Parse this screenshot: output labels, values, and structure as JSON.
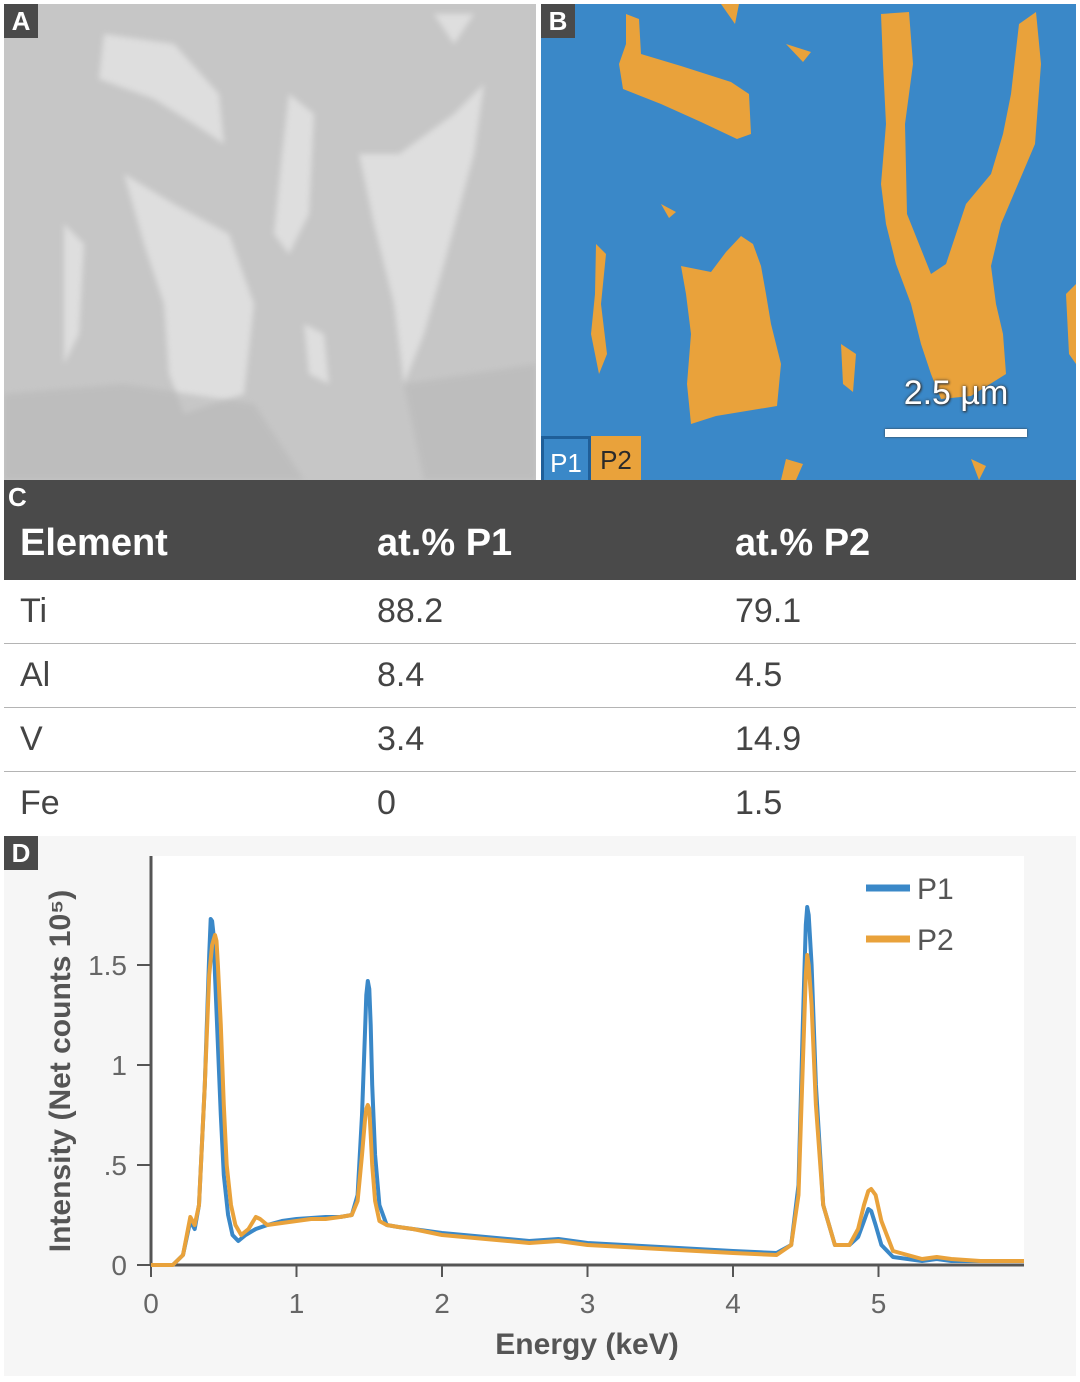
{
  "panels": {
    "a": {
      "label": "A"
    },
    "b": {
      "label": "B",
      "legend": [
        "P1",
        "P2"
      ],
      "scale_bar": "2.5 µm",
      "colors": {
        "p1": "#3a88c8",
        "p2": "#e9a23b"
      }
    },
    "c": {
      "label": "C"
    },
    "d": {
      "label": "D"
    }
  },
  "table": {
    "headers": [
      "Element",
      "at.% P1",
      "at.% P2"
    ],
    "rows": [
      [
        "Ti",
        "88.2",
        "79.1"
      ],
      [
        "Al",
        "8.4",
        "4.5"
      ],
      [
        "V",
        "3.4",
        "14.9"
      ],
      [
        "Fe",
        "0",
        "1.5"
      ]
    ]
  },
  "chart_data": {
    "type": "line",
    "xlabel": "Energy (keV)",
    "ylabel": "Intensity (Net counts 10⁵)",
    "xlim": [
      0,
      6
    ],
    "ylim": [
      0,
      2
    ],
    "xticks": [
      0,
      1,
      2,
      3,
      4,
      5
    ],
    "yticks": [
      0,
      0.5,
      1,
      1.5
    ],
    "ytick_labels": [
      "0",
      ".5",
      "1",
      "1.5"
    ],
    "legend_position": "top-right",
    "series": [
      {
        "name": "P1",
        "color": "#3a88c8",
        "x": [
          0.0,
          0.15,
          0.22,
          0.27,
          0.3,
          0.33,
          0.37,
          0.4,
          0.41,
          0.42,
          0.43,
          0.44,
          0.46,
          0.48,
          0.5,
          0.53,
          0.56,
          0.6,
          0.65,
          0.72,
          0.8,
          0.9,
          1.0,
          1.1,
          1.2,
          1.3,
          1.38,
          1.42,
          1.45,
          1.47,
          1.48,
          1.49,
          1.5,
          1.51,
          1.52,
          1.54,
          1.57,
          1.62,
          1.7,
          1.8,
          2.0,
          2.3,
          2.6,
          2.8,
          3.0,
          3.5,
          4.0,
          4.3,
          4.4,
          4.45,
          4.48,
          4.5,
          4.51,
          4.52,
          4.54,
          4.57,
          4.62,
          4.7,
          4.8,
          4.86,
          4.9,
          4.93,
          4.95,
          4.98,
          5.02,
          5.1,
          5.3,
          5.4,
          5.5,
          5.7,
          6.0
        ],
        "y": [
          0.0,
          0.0,
          0.05,
          0.22,
          0.18,
          0.3,
          0.9,
          1.55,
          1.73,
          1.72,
          1.65,
          1.45,
          1.1,
          0.75,
          0.45,
          0.25,
          0.15,
          0.12,
          0.15,
          0.18,
          0.2,
          0.22,
          0.23,
          0.235,
          0.24,
          0.24,
          0.25,
          0.35,
          0.75,
          1.15,
          1.35,
          1.42,
          1.38,
          1.2,
          0.9,
          0.55,
          0.3,
          0.2,
          0.19,
          0.18,
          0.16,
          0.14,
          0.12,
          0.13,
          0.11,
          0.09,
          0.07,
          0.06,
          0.1,
          0.4,
          1.2,
          1.7,
          1.79,
          1.75,
          1.5,
          0.9,
          0.3,
          0.1,
          0.1,
          0.14,
          0.22,
          0.28,
          0.27,
          0.2,
          0.1,
          0.04,
          0.02,
          0.03,
          0.02,
          0.02,
          0.02
        ]
      },
      {
        "name": "P2",
        "color": "#e9a23b",
        "x": [
          0.0,
          0.15,
          0.22,
          0.27,
          0.3,
          0.33,
          0.37,
          0.4,
          0.42,
          0.44,
          0.45,
          0.46,
          0.48,
          0.5,
          0.52,
          0.55,
          0.58,
          0.62,
          0.67,
          0.72,
          0.75,
          0.8,
          0.9,
          1.0,
          1.1,
          1.2,
          1.3,
          1.38,
          1.42,
          1.45,
          1.47,
          1.48,
          1.49,
          1.5,
          1.51,
          1.52,
          1.54,
          1.57,
          1.62,
          1.7,
          1.8,
          2.0,
          2.3,
          2.6,
          2.8,
          3.0,
          3.5,
          4.0,
          4.3,
          4.4,
          4.45,
          4.48,
          4.5,
          4.51,
          4.52,
          4.54,
          4.57,
          4.62,
          4.7,
          4.8,
          4.86,
          4.9,
          4.93,
          4.95,
          4.98,
          5.02,
          5.1,
          5.3,
          5.4,
          5.5,
          5.7,
          6.0
        ],
        "y": [
          0.0,
          0.0,
          0.05,
          0.24,
          0.2,
          0.3,
          0.9,
          1.45,
          1.6,
          1.65,
          1.62,
          1.5,
          1.2,
          0.8,
          0.5,
          0.3,
          0.2,
          0.15,
          0.18,
          0.24,
          0.23,
          0.2,
          0.21,
          0.22,
          0.23,
          0.23,
          0.24,
          0.25,
          0.32,
          0.55,
          0.72,
          0.78,
          0.8,
          0.78,
          0.65,
          0.5,
          0.32,
          0.22,
          0.2,
          0.19,
          0.18,
          0.15,
          0.13,
          0.11,
          0.12,
          0.1,
          0.08,
          0.06,
          0.05,
          0.1,
          0.35,
          1.0,
          1.45,
          1.55,
          1.5,
          1.3,
          0.8,
          0.3,
          0.1,
          0.1,
          0.18,
          0.3,
          0.37,
          0.38,
          0.35,
          0.22,
          0.07,
          0.03,
          0.04,
          0.03,
          0.02,
          0.02
        ]
      }
    ]
  }
}
